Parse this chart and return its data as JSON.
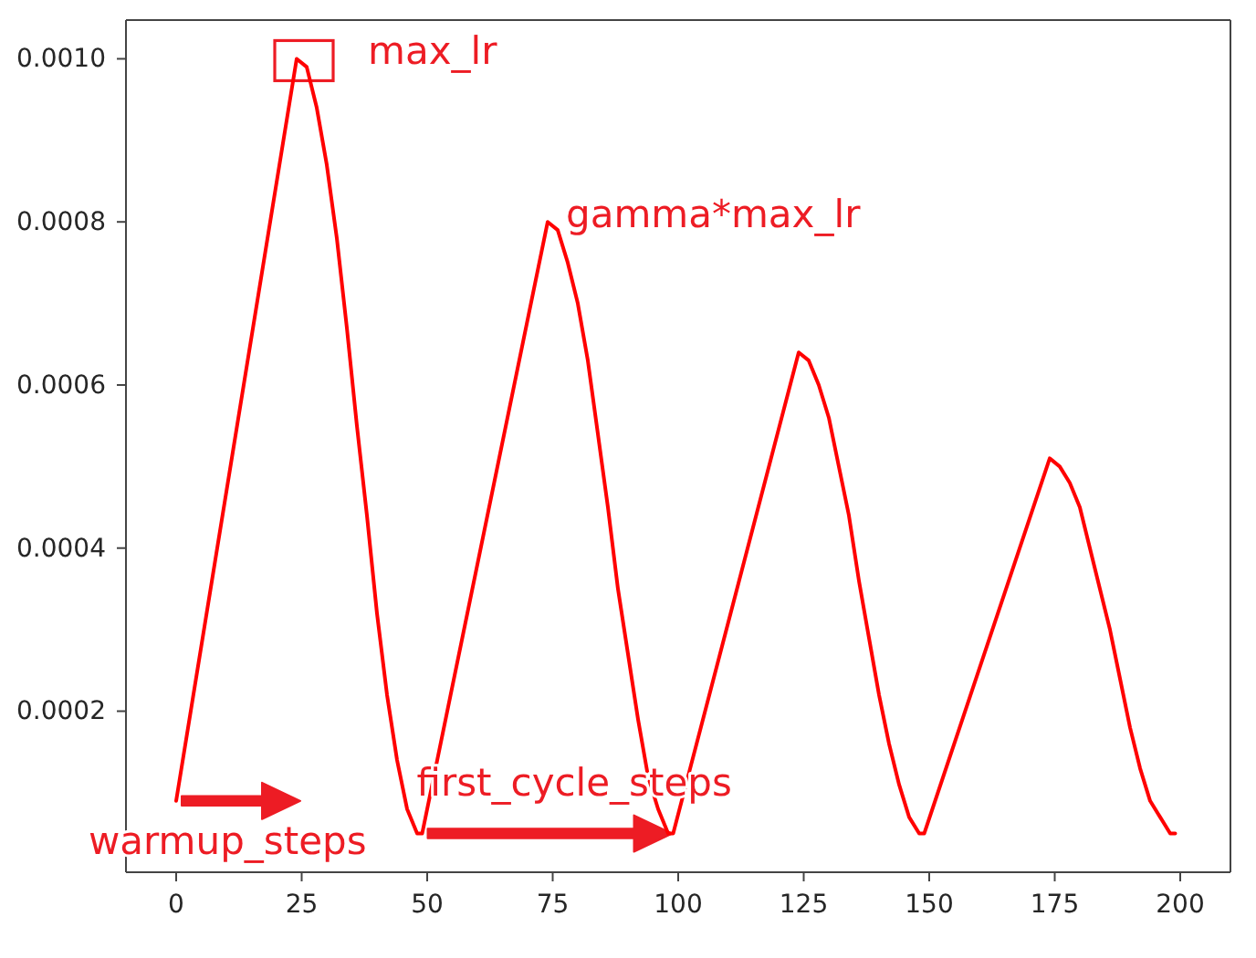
{
  "chart_data": {
    "type": "line",
    "x": [
      0,
      24,
      26,
      28,
      30,
      32,
      34,
      36,
      38,
      40,
      42,
      44,
      46,
      48,
      49,
      74,
      76,
      78,
      80,
      82,
      84,
      86,
      88,
      90,
      92,
      94,
      96,
      98,
      99,
      124,
      126,
      128,
      130,
      132,
      134,
      136,
      138,
      140,
      142,
      144,
      146,
      148,
      149,
      174,
      176,
      178,
      180,
      182,
      184,
      186,
      188,
      190,
      192,
      194,
      196,
      198,
      199
    ],
    "series": [
      {
        "color": "#ff0000",
        "values": [
          9e-05,
          0.001,
          0.00099,
          0.00094,
          0.00087,
          0.00078,
          0.00067,
          0.00055,
          0.00044,
          0.00032,
          0.00022,
          0.00014,
          8e-05,
          5e-05,
          5e-05,
          0.0008,
          0.00079,
          0.00075,
          0.0007,
          0.00063,
          0.00054,
          0.00045,
          0.00035,
          0.00027,
          0.00019,
          0.00012,
          8e-05,
          5e-05,
          5e-05,
          0.00064,
          0.00063,
          0.0006,
          0.00056,
          0.0005,
          0.00044,
          0.00036,
          0.00029,
          0.00022,
          0.00016,
          0.00011,
          7e-05,
          5e-05,
          5e-05,
          0.00051,
          0.0005,
          0.00048,
          0.00045,
          0.0004,
          0.00035,
          0.0003,
          0.00024,
          0.00018,
          0.00013,
          9e-05,
          7e-05,
          5e-05,
          5e-05
        ]
      }
    ],
    "xlim": [
      -10,
      210
    ],
    "xticks": [
      0,
      25,
      50,
      75,
      100,
      125,
      150,
      175,
      200
    ],
    "ylim": [
      2.5e-06,
      0.0010475
    ],
    "yticks": [
      0.0002,
      0.0004,
      0.0006,
      0.0008,
      {
        "value": 0.001,
        "label": "0.0010"
      }
    ],
    "annotations": [
      {
        "text": "max_lr",
        "x": 24,
        "y": 0.001
      },
      {
        "text": "gamma*max_lr",
        "x": 74,
        "y": 0.0008
      },
      {
        "text": "first_cycle_steps",
        "x": 49,
        "y": 5e-05
      },
      {
        "text": "warmup_steps",
        "x": 0,
        "y": 9e-05
      }
    ]
  }
}
